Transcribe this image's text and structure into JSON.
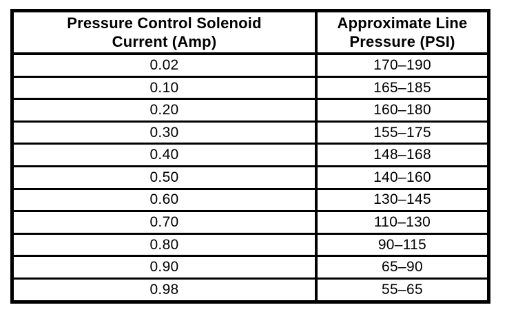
{
  "table": {
    "columns": [
      {
        "line1": "Pressure Control Solenoid",
        "line2": "Current (Amp)"
      },
      {
        "line1": "Approximate Line",
        "line2": "Pressure (PSI)"
      }
    ],
    "rows": [
      {
        "amp": "0.02",
        "psi": "170–190"
      },
      {
        "amp": "0.10",
        "psi": "165–185"
      },
      {
        "amp": "0.20",
        "psi": "160–180"
      },
      {
        "amp": "0.30",
        "psi": "155–175"
      },
      {
        "amp": "0.40",
        "psi": "148–168"
      },
      {
        "amp": "0.50",
        "psi": "140–160"
      },
      {
        "amp": "0.60",
        "psi": "130–145"
      },
      {
        "amp": "0.70",
        "psi": "110–130"
      },
      {
        "amp": "0.80",
        "psi": "90–115"
      },
      {
        "amp": "0.90",
        "psi": "65–90"
      },
      {
        "amp": "0.98",
        "psi": "55–65"
      }
    ],
    "ink_color": "#000000",
    "paper_color": "#ffffff"
  }
}
